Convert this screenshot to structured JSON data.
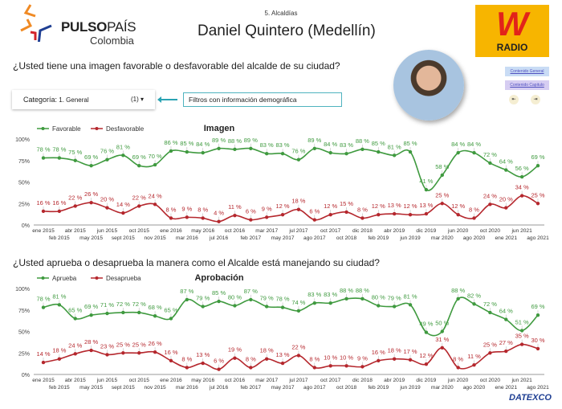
{
  "header": {
    "brand": "PULSO",
    "brand_thin": "PAÍS",
    "brand_sub": "Colombia",
    "section": "5. Alcaldías",
    "title": "Daniel Quintero (Medellín)",
    "radio_logo": "W RADIO",
    "links": [
      "Contenido General",
      "Contenido Capitulo"
    ],
    "nav_icons": [
      "prev-icon",
      "next-icon"
    ]
  },
  "questions": [
    "¿Usted tiene una imagen favorable o desfavorable del alcalde de su ciudad?",
    "¿Usted aprueba o desaprueba la manera como el Alcalde está manejando su ciudad?"
  ],
  "filter": {
    "label": "Categoría:",
    "value": "1. General",
    "count": "(1)",
    "note": "Filtros con información demográfica"
  },
  "footer": {
    "logo": "DATEXCO"
  },
  "colors": {
    "positive": "#3f9a3f",
    "negative": "#b5272d"
  },
  "chart_data": [
    {
      "type": "line",
      "title": "Imagen",
      "ylim": [
        0,
        100
      ],
      "yticks": [
        "0%",
        "25%",
        "50%",
        "75%",
        "100%"
      ],
      "legend": "top-left",
      "categories": [
        "ene 2015",
        "feb 2015",
        "abr 2015",
        "may 2015",
        "jun 2015",
        "sept 2015",
        "oct 2015",
        "nov 2015",
        "ene 2016",
        "mar 2016",
        "may 2016",
        "jul 2016",
        "oct 2016",
        "feb 2017",
        "mar 2017",
        "may 2017",
        "jul 2017",
        "ago 2017",
        "oct 2017",
        "oct 2018",
        "dic 2018",
        "feb 2019",
        "abr 2019",
        "jun 2019",
        "dic 2019",
        "mar 2020",
        "jun 2020",
        "ago 2020",
        "oct 2020",
        "ene 2021",
        "jun 2021",
        "ago 2021"
      ],
      "series": [
        {
          "name": "Favorable",
          "values": [
            78,
            78,
            75,
            69,
            76,
            81,
            69,
            70,
            86,
            85,
            84,
            89,
            88,
            89,
            83,
            83,
            76,
            89,
            84,
            83,
            88,
            85,
            81,
            85,
            41,
            58,
            84,
            84,
            72,
            64,
            56,
            69
          ]
        },
        {
          "name": "Desfavorable",
          "values": [
            16,
            16,
            22,
            26,
            20,
            14,
            22,
            24,
            8,
            9,
            8,
            4,
            11,
            6,
            9,
            12,
            18,
            6,
            12,
            15,
            8,
            12,
            13,
            12,
            13,
            25,
            12,
            8,
            24,
            20,
            34,
            25
          ]
        }
      ]
    },
    {
      "type": "line",
      "title": "Aprobación",
      "ylim": [
        0,
        100
      ],
      "yticks": [
        "0%",
        "25%",
        "50%",
        "75%",
        "100%"
      ],
      "legend": "top-left",
      "categories": [
        "ene 2015",
        "feb 2015",
        "abr 2015",
        "may 2015",
        "jun 2015",
        "sept 2015",
        "oct 2015",
        "nov 2015",
        "ene 2016",
        "mar 2016",
        "may 2016",
        "jul 2016",
        "oct 2016",
        "feb 2017",
        "mar 2017",
        "may 2017",
        "jul 2017",
        "ago 2017",
        "oct 2017",
        "oct 2018",
        "dic 2018",
        "feb 2019",
        "abr 2019",
        "jun 2019",
        "dic 2019",
        "mar 2020",
        "jun 2020",
        "ago 2020",
        "oct 2020",
        "ene 2021",
        "jun 2021",
        "ago 2021"
      ],
      "series": [
        {
          "name": "Aprueba",
          "values": [
            78,
            81,
            65,
            69,
            71,
            72,
            72,
            68,
            65,
            87,
            79,
            85,
            80,
            87,
            79,
            78,
            74,
            83,
            83,
            88,
            88,
            80,
            79,
            81,
            49,
            50,
            88,
            82,
            72,
            64,
            51,
            69
          ]
        },
        {
          "name": "Desaprueba",
          "values": [
            14,
            18,
            24,
            28,
            23,
            25,
            25,
            26,
            16,
            8,
            13,
            6,
            19,
            8,
            18,
            13,
            22,
            8,
            10,
            10,
            9,
            16,
            18,
            17,
            12,
            31,
            8,
            11,
            25,
            27,
            35,
            30
          ]
        }
      ]
    }
  ]
}
